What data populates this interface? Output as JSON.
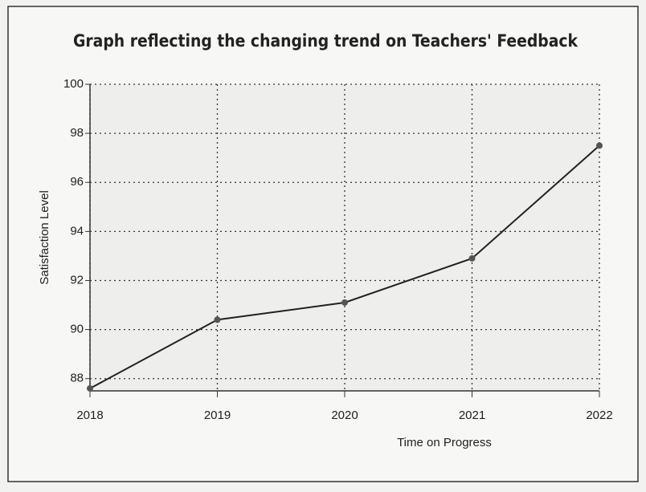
{
  "chart_data": {
    "type": "line",
    "title": "Graph reflecting the changing trend on Teachers' Feedback",
    "x_label": "Time on Progress",
    "y_label": "Satisfaction Level",
    "x": [
      2018,
      2019,
      2020,
      2021,
      2022
    ],
    "xlim": [
      2018,
      2022
    ],
    "xticks": [
      2018,
      2019,
      2020,
      2021,
      2022
    ],
    "series": [
      {
        "name": "Satisfaction Level",
        "color": "#222222",
        "values": [
          87.6,
          90.4,
          91.1,
          92.9,
          97.5
        ]
      }
    ],
    "ylim": [
      87.5,
      100
    ],
    "yticks": [
      88,
      90,
      92,
      94,
      96,
      98,
      100
    ],
    "grid": true
  }
}
